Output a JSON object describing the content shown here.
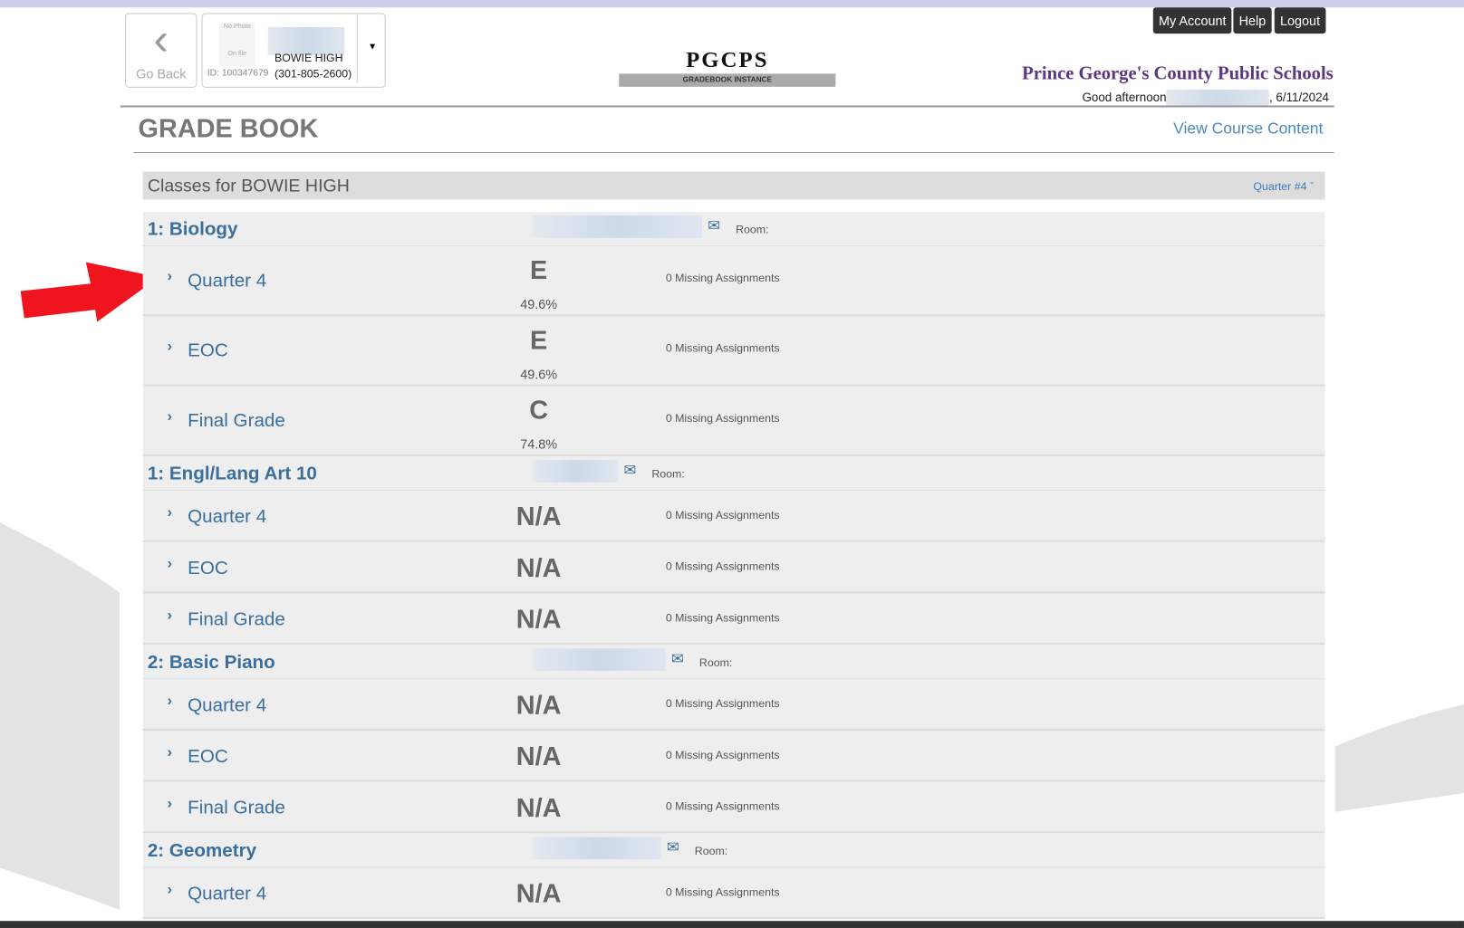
{
  "header": {
    "go_back": "Go Back",
    "photo_top": "No Photo",
    "photo_bottom": "On file",
    "student_id": "ID: 100347679",
    "school": "BOWIE HIGH",
    "phone": "(301-805-2600)",
    "logo": "PGCPS",
    "logo_sub": "GRADEBOOK INSTANCE",
    "buttons": [
      "My Account",
      "Help",
      "Logout"
    ],
    "district": "Prince George's County Public Schools",
    "greeting": "Good afternoon",
    "date": ", 6/11/2024"
  },
  "page": {
    "title": "GRADE BOOK",
    "link": "View Course Content"
  },
  "classes": {
    "heading": "Classes for BOWIE HIGH",
    "term": "Quarter #4",
    "room_label": "Room:",
    "courses": [
      {
        "name": "1: Biology",
        "rows": [
          {
            "period": "Quarter 4",
            "grade": "E",
            "percent": "49.6%",
            "missing": "0 Missing Assignments"
          },
          {
            "period": "EOC",
            "grade": "E",
            "percent": "49.6%",
            "missing": "0 Missing Assignments"
          },
          {
            "period": "Final Grade",
            "grade": "C",
            "percent": "74.8%",
            "missing": "0 Missing Assignments"
          }
        ]
      },
      {
        "name": "1: Engl/Lang Art 10",
        "rows": [
          {
            "period": "Quarter 4",
            "grade": "N/A",
            "missing": "0 Missing Assignments"
          },
          {
            "period": "EOC",
            "grade": "N/A",
            "missing": "0 Missing Assignments"
          },
          {
            "period": "Final Grade",
            "grade": "N/A",
            "missing": "0 Missing Assignments"
          }
        ]
      },
      {
        "name": "2: Basic Piano",
        "rows": [
          {
            "period": "Quarter 4",
            "grade": "N/A",
            "missing": "0 Missing Assignments"
          },
          {
            "period": "EOC",
            "grade": "N/A",
            "missing": "0 Missing Assignments"
          },
          {
            "period": "Final Grade",
            "grade": "N/A",
            "missing": "0 Missing Assignments"
          }
        ]
      },
      {
        "name": "2: Geometry",
        "rows": [
          {
            "period": "Quarter 4",
            "grade": "N/A",
            "missing": "0 Missing Assignments"
          }
        ]
      }
    ]
  }
}
